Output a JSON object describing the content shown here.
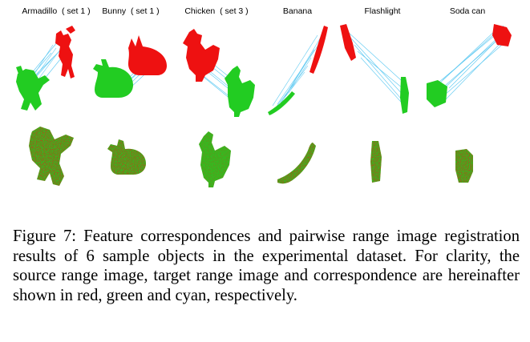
{
  "figure": {
    "columns": [
      {
        "label": "Armadillo  ( set 1 )",
        "object": "armadillo"
      },
      {
        "label": "Bunny  ( set 1 )",
        "object": "bunny"
      },
      {
        "label": "Chicken  ( set 3 )",
        "object": "chicken"
      },
      {
        "label": "Banana",
        "object": "banana"
      },
      {
        "label": "Flashlight",
        "object": "flashlight"
      },
      {
        "label": "Soda can",
        "object": "soda-can"
      }
    ],
    "colors": {
      "source": "#ee1111",
      "target": "#22cc22",
      "correspondence": "#33bbee"
    }
  },
  "caption": {
    "text": "Figure 7: Feature correspondences and pairwise range image registration results of 6 sample objects in the experimental dataset. For clarity, the source range image, target range image and correspondence are hereinafter shown in red, green and cyan, respectively."
  }
}
